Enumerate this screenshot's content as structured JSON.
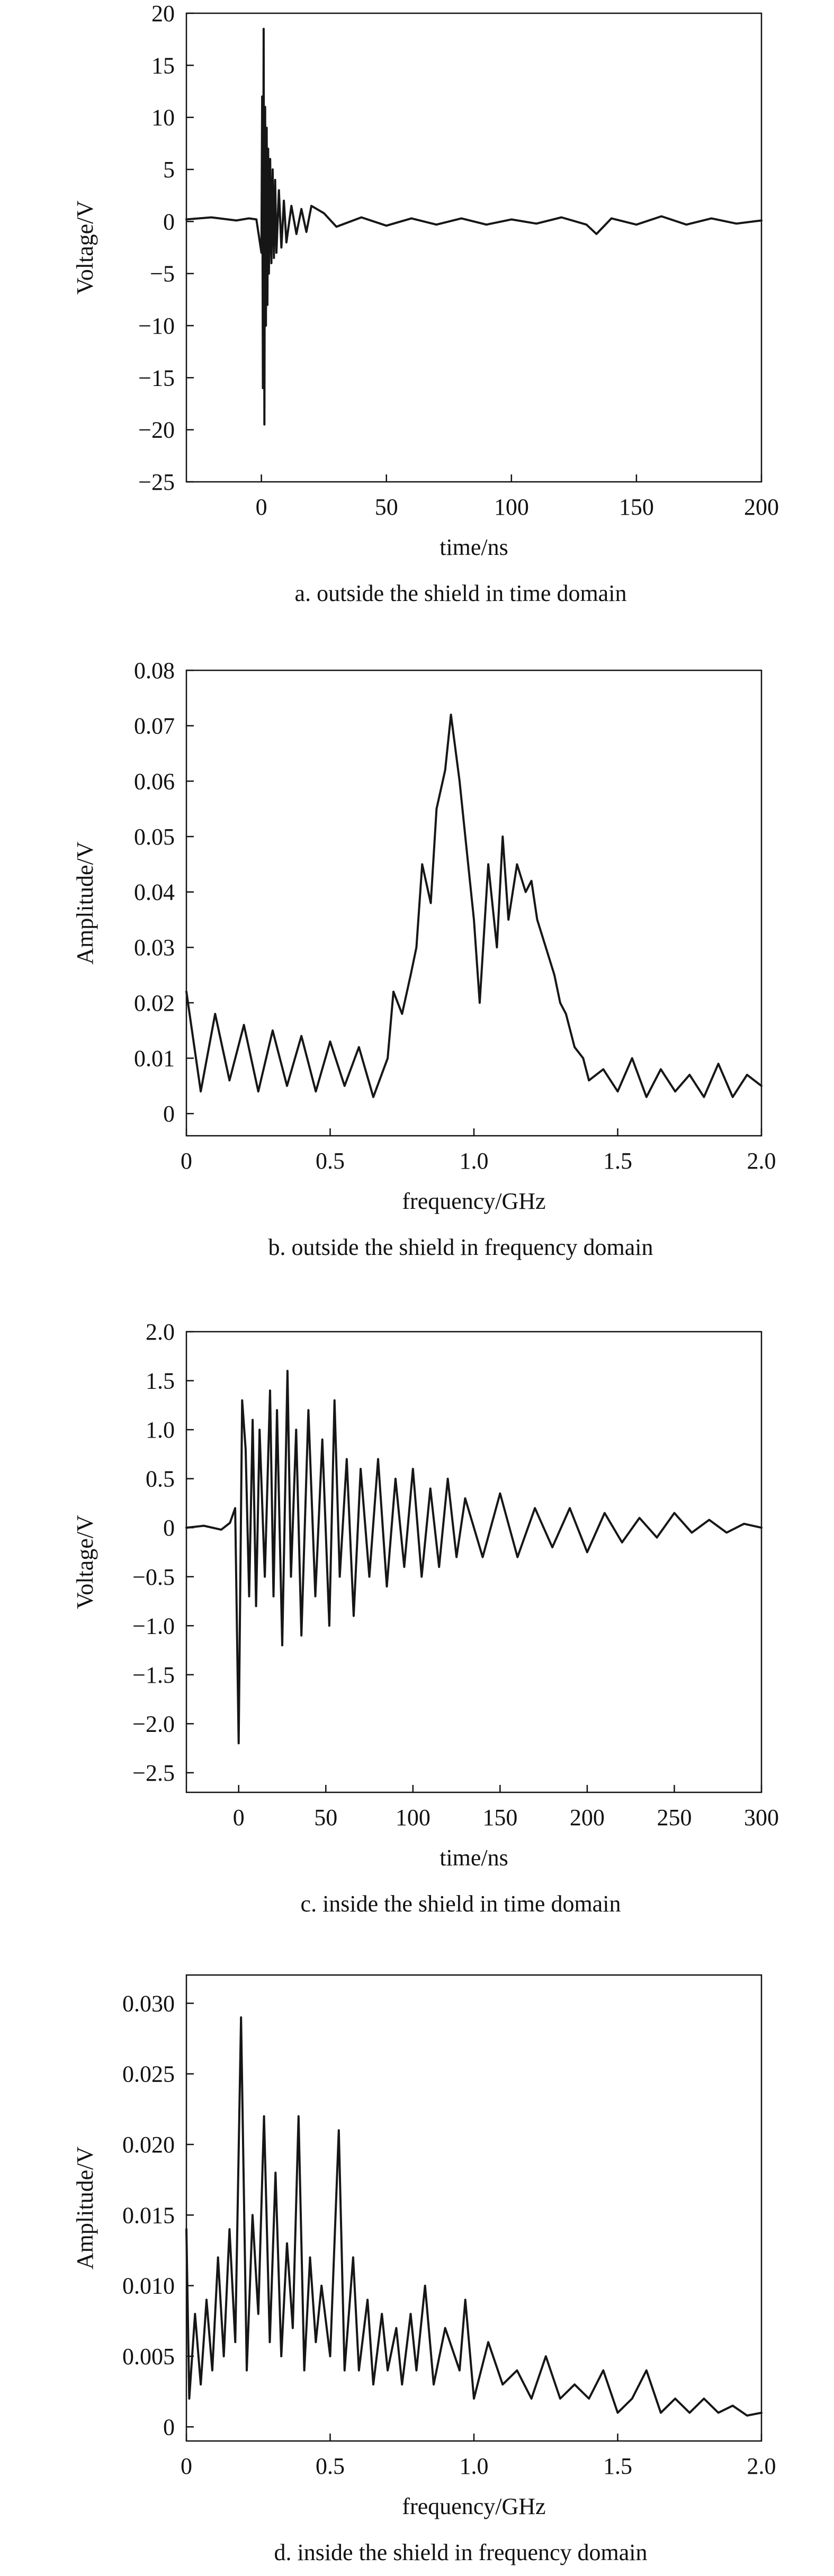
{
  "chart_data": [
    {
      "type": "line",
      "panel": "a",
      "caption": "a. outside the shield in time domain",
      "title": "",
      "xlabel": "time/ns",
      "ylabel": "Voltage/V",
      "xlim": [
        -30,
        200
      ],
      "ylim": [
        -25,
        20
      ],
      "xticks": [
        0,
        50,
        100,
        150,
        200
      ],
      "xtick_labels": [
        "0",
        "50",
        "100",
        "150",
        "200"
      ],
      "yticks": [
        20,
        15,
        10,
        5,
        0,
        -5,
        -10,
        -15,
        -20,
        -25
      ],
      "ytick_labels": [
        "20",
        "15",
        "10",
        "5",
        "0",
        "−5",
        "−10",
        "−15",
        "−20",
        "−25"
      ],
      "grid": false,
      "series": [
        {
          "x": [
            -30,
            -20,
            -10,
            -5,
            -2,
            0,
            0.3,
            0.6,
            0.9,
            1.2,
            1.5,
            1.8,
            2.1,
            2.4,
            2.7,
            3,
            3.5,
            4,
            4.5,
            5,
            5.5,
            6,
            7,
            8,
            9,
            10,
            12,
            14,
            16,
            18,
            20,
            25,
            30,
            40,
            50,
            60,
            70,
            80,
            90,
            100,
            110,
            120,
            130,
            134,
            140,
            150,
            160,
            170,
            180,
            190,
            200
          ],
          "y": [
            0.2,
            0.4,
            0.1,
            0.3,
            0.2,
            -3,
            12,
            -16,
            18.5,
            -19.5,
            11,
            -10,
            9,
            -8,
            7,
            -5,
            6,
            -4,
            5,
            -3.5,
            4,
            -3,
            3,
            -2.5,
            2,
            -2,
            1.5,
            -1.2,
            1.2,
            -1,
            1.5,
            0.8,
            -0.5,
            0.4,
            -0.4,
            0.3,
            -0.3,
            0.3,
            -0.3,
            0.2,
            -0.2,
            0.4,
            -0.3,
            -1.2,
            0.3,
            -0.3,
            0.5,
            -0.3,
            0.3,
            -0.2,
            0.1
          ]
        }
      ]
    },
    {
      "type": "line",
      "panel": "b",
      "caption": "b. outside the shield in frequency domain",
      "title": "",
      "xlabel": "frequency/GHz",
      "ylabel": "Amplitude/V",
      "xlim": [
        0,
        2.0
      ],
      "ylim": [
        -0.004,
        0.08
      ],
      "xticks": [
        0,
        0.5,
        1.0,
        1.5,
        2.0
      ],
      "xtick_labels": [
        "0",
        "0.5",
        "1.0",
        "1.5",
        "2.0"
      ],
      "yticks": [
        0.08,
        0.07,
        0.06,
        0.05,
        0.04,
        0.03,
        0.02,
        0.01,
        0
      ],
      "ytick_labels": [
        "0.08",
        "0.07",
        "0.06",
        "0.05",
        "0.04",
        "0.03",
        "0.02",
        "0.01",
        "0"
      ],
      "grid": false,
      "series": [
        {
          "x": [
            0,
            0.05,
            0.1,
            0.15,
            0.2,
            0.25,
            0.3,
            0.35,
            0.4,
            0.45,
            0.5,
            0.55,
            0.6,
            0.65,
            0.7,
            0.72,
            0.75,
            0.78,
            0.8,
            0.82,
            0.85,
            0.87,
            0.9,
            0.92,
            0.95,
            0.97,
            1.0,
            1.02,
            1.05,
            1.08,
            1.1,
            1.12,
            1.15,
            1.18,
            1.2,
            1.22,
            1.25,
            1.28,
            1.3,
            1.32,
            1.35,
            1.38,
            1.4,
            1.45,
            1.5,
            1.55,
            1.6,
            1.65,
            1.7,
            1.75,
            1.8,
            1.85,
            1.9,
            1.95,
            2.0
          ],
          "y": [
            0.022,
            0.004,
            0.018,
            0.006,
            0.016,
            0.004,
            0.015,
            0.005,
            0.014,
            0.004,
            0.013,
            0.005,
            0.012,
            0.003,
            0.01,
            0.022,
            0.018,
            0.025,
            0.03,
            0.045,
            0.038,
            0.055,
            0.062,
            0.072,
            0.06,
            0.05,
            0.035,
            0.02,
            0.045,
            0.03,
            0.05,
            0.035,
            0.045,
            0.04,
            0.042,
            0.035,
            0.03,
            0.025,
            0.02,
            0.018,
            0.012,
            0.01,
            0.006,
            0.008,
            0.004,
            0.01,
            0.003,
            0.008,
            0.004,
            0.007,
            0.003,
            0.009,
            0.003,
            0.007,
            0.005
          ]
        }
      ]
    },
    {
      "type": "line",
      "panel": "c",
      "caption": "c. inside the shield in time domain",
      "title": "",
      "xlabel": "time/ns",
      "ylabel": "Voltage/V",
      "xlim": [
        -30,
        300
      ],
      "ylim": [
        -2.7,
        2.0
      ],
      "xticks": [
        0,
        50,
        100,
        150,
        200,
        250,
        300
      ],
      "xtick_labels": [
        "0",
        "50",
        "100",
        "150",
        "200",
        "250",
        "300"
      ],
      "yticks": [
        2.0,
        1.5,
        1.0,
        0.5,
        0,
        -0.5,
        -1.0,
        -1.5,
        -2.0,
        -2.5
      ],
      "ytick_labels": [
        "2.0",
        "1.5",
        "1.0",
        "0.5",
        "0",
        "−0.5",
        "−1.0",
        "−1.5",
        "−2.0",
        "−2.5"
      ],
      "grid": false,
      "series": [
        {
          "x": [
            -30,
            -20,
            -10,
            -5,
            -2,
            0,
            2,
            4,
            6,
            8,
            10,
            12,
            15,
            18,
            20,
            22,
            25,
            28,
            30,
            33,
            36,
            40,
            44,
            48,
            52,
            55,
            58,
            62,
            66,
            70,
            75,
            80,
            85,
            90,
            95,
            100,
            105,
            110,
            115,
            120,
            125,
            130,
            140,
            150,
            160,
            170,
            180,
            190,
            200,
            210,
            220,
            230,
            240,
            250,
            260,
            270,
            280,
            290,
            300
          ],
          "y": [
            0,
            0.02,
            -0.02,
            0.05,
            0.2,
            -2.2,
            1.3,
            0.8,
            -0.7,
            1.1,
            -0.8,
            1.0,
            -0.5,
            1.4,
            -0.7,
            1.2,
            -1.2,
            1.6,
            -0.5,
            1.0,
            -1.1,
            1.2,
            -0.7,
            0.9,
            -1.0,
            1.3,
            -0.5,
            0.7,
            -0.9,
            0.6,
            -0.5,
            0.7,
            -0.6,
            0.5,
            -0.4,
            0.6,
            -0.5,
            0.4,
            -0.4,
            0.5,
            -0.3,
            0.3,
            -0.3,
            0.35,
            -0.3,
            0.2,
            -0.2,
            0.2,
            -0.25,
            0.15,
            -0.15,
            0.1,
            -0.1,
            0.15,
            -0.05,
            0.08,
            -0.05,
            0.04,
            0
          ]
        }
      ]
    },
    {
      "type": "line",
      "panel": "d",
      "caption": "d. inside the shield in frequency domain",
      "title": "",
      "xlabel": "frequency/GHz",
      "ylabel": "Amplitude/V",
      "xlim": [
        0,
        2.0
      ],
      "ylim": [
        -0.001,
        0.032
      ],
      "xticks": [
        0,
        0.5,
        1.0,
        1.5,
        2.0
      ],
      "xtick_labels": [
        "0",
        "0.5",
        "1.0",
        "1.5",
        "2.0"
      ],
      "yticks": [
        0.03,
        0.025,
        0.02,
        0.015,
        0.01,
        0.005,
        0
      ],
      "ytick_labels": [
        "0.030",
        "0.025",
        "0.020",
        "0.015",
        "0.010",
        "0.005",
        "0"
      ],
      "grid": false,
      "series": [
        {
          "x": [
            0,
            0.01,
            0.03,
            0.05,
            0.07,
            0.09,
            0.11,
            0.13,
            0.15,
            0.17,
            0.19,
            0.21,
            0.23,
            0.25,
            0.27,
            0.29,
            0.31,
            0.33,
            0.35,
            0.37,
            0.39,
            0.41,
            0.43,
            0.45,
            0.47,
            0.5,
            0.53,
            0.55,
            0.58,
            0.6,
            0.63,
            0.65,
            0.68,
            0.7,
            0.73,
            0.75,
            0.78,
            0.8,
            0.83,
            0.86,
            0.9,
            0.95,
            0.97,
            1.0,
            1.05,
            1.1,
            1.15,
            1.2,
            1.25,
            1.3,
            1.35,
            1.4,
            1.45,
            1.5,
            1.55,
            1.6,
            1.65,
            1.7,
            1.75,
            1.8,
            1.85,
            1.9,
            1.95,
            2.0
          ],
          "y": [
            0.014,
            0.002,
            0.008,
            0.003,
            0.009,
            0.004,
            0.012,
            0.005,
            0.014,
            0.006,
            0.029,
            0.004,
            0.015,
            0.008,
            0.022,
            0.006,
            0.018,
            0.005,
            0.013,
            0.007,
            0.022,
            0.004,
            0.012,
            0.006,
            0.01,
            0.005,
            0.021,
            0.004,
            0.012,
            0.004,
            0.009,
            0.003,
            0.008,
            0.004,
            0.007,
            0.003,
            0.008,
            0.004,
            0.01,
            0.003,
            0.007,
            0.004,
            0.009,
            0.002,
            0.006,
            0.003,
            0.004,
            0.002,
            0.005,
            0.002,
            0.003,
            0.002,
            0.004,
            0.001,
            0.002,
            0.004,
            0.001,
            0.002,
            0.001,
            0.002,
            0.001,
            0.0015,
            0.0008,
            0.001
          ]
        }
      ]
    }
  ]
}
